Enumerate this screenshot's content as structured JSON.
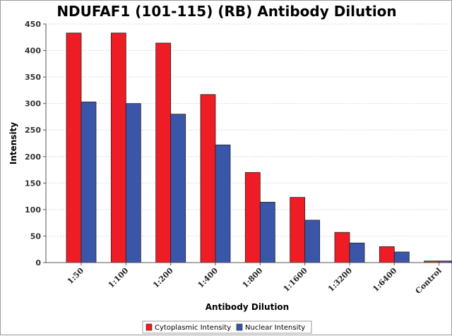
{
  "chart_data": {
    "type": "bar",
    "title": "NDUFAF1 (101-115) (RB) Antibody Dilution",
    "xlabel": "Antibody Dilution",
    "ylabel": "Intensity",
    "ylim": [
      0,
      450
    ],
    "yticks": [
      0,
      50,
      100,
      150,
      200,
      250,
      300,
      350,
      400,
      450
    ],
    "grid": true,
    "legend_position": "bottom",
    "categories": [
      "1:50",
      "1:100",
      "1:200",
      "1:400",
      "1:800",
      "1:1600",
      "1:3200",
      "1:6400",
      "Control"
    ],
    "series": [
      {
        "name": "Cytoplasmic Intensity",
        "color": "#ee1c25",
        "values": [
          433,
          433,
          414,
          317,
          170,
          123,
          57,
          30,
          3
        ]
      },
      {
        "name": "Nuclear Intensity",
        "color": "#3a56a8",
        "values": [
          303,
          300,
          280,
          222,
          114,
          80,
          37,
          20,
          3
        ]
      }
    ]
  }
}
